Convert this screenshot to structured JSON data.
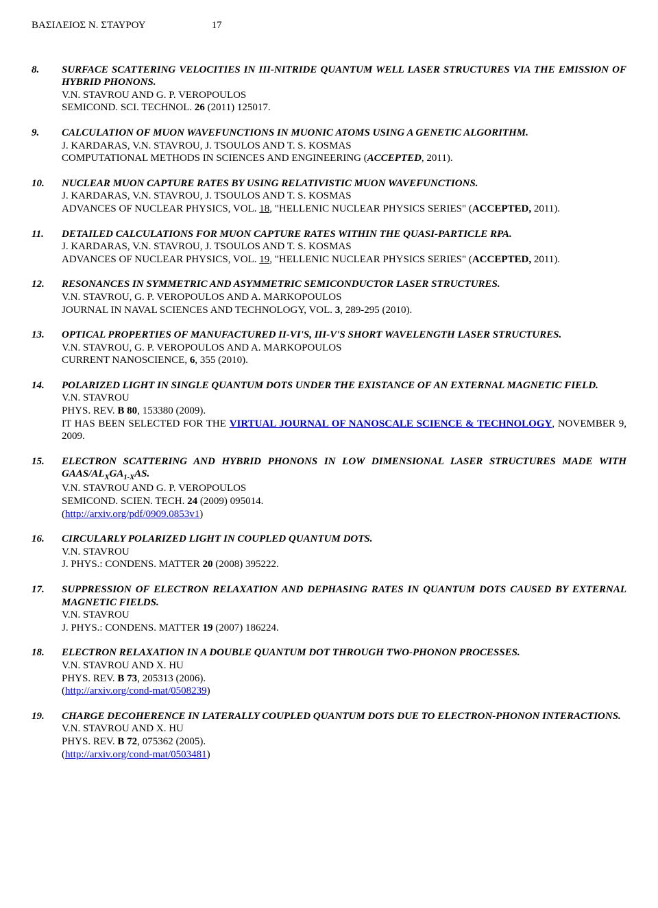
{
  "header": {
    "name": "ΒΑΣΙΛΕΙΟΣ Ν. ΣΤΑΥΡΟΥ",
    "page": "17"
  },
  "refs": [
    {
      "num": "8.",
      "title": "SURFACE SCATTERING VELOCITIES IN III-NITRIDE QUANTUM WELL LASER STRUCTURES VIA THE EMISSION OF HYBRID PHONONS.",
      "authors": "V.N. STAVROU AND G. P. VEROPOULOS",
      "pub_pre": "SEMICOND. SCI. TECHNOL. ",
      "pub_bold": "26",
      "pub_post": " (2011) 125017."
    },
    {
      "num": "9.",
      "title": "CALCULATION OF MUON WAVEFUNCTIONS IN MUONIC ATOMS USING A GENETIC ALGORITHM.",
      "authors": "J. KARDARAS, V.N. STAVROU, J. TSOULOS AND T. S. KOSMAS",
      "pub_pre": "COMPUTATIONAL METHODS IN SCIENCES AND ENGINEERING (",
      "pub_ital": "ACCEPTED",
      "pub_post2": ", 2011)."
    },
    {
      "num": "10.",
      "title": "NUCLEAR MUON CAPTURE RATES BY USING RELATIVISTIC MUON WAVEFUNCTIONS.",
      "authors": "J. KARDARAS, V.N. STAVROU, J. TSOULOS AND T. S. KOSMAS",
      "pub_pre": "ADVANCES OF NUCLEAR PHYSICS, VOL. ",
      "pub_ul": "18",
      "pub_mid": ", \"HELLENIC NUCLEAR PHYSICS SERIES\" (",
      "pub_bold2": "ACCEPTED,",
      "pub_post3": " 2011)."
    },
    {
      "num": "11.",
      "title": "DETAILED CALCULATIONS FOR MUON CAPTURE RATES WITHIN THE QUASI-PARTICLE RPA.",
      "authors": "J. KARDARAS, V.N. STAVROU, J. TSOULOS AND T. S. KOSMAS",
      "pub_pre": "ADVANCES OF NUCLEAR PHYSICS, VOL. ",
      "pub_ul": "19",
      "pub_mid": ", \"HELLENIC NUCLEAR PHYSICS SERIES\" (",
      "pub_bold2": "ACCEPTED,",
      "pub_post3": " 2011)."
    },
    {
      "num": "12.",
      "title": "RESONANCES IN SYMMETRIC AND ASYMMETRIC SEMICONDUCTOR LASER STRUCTURES.",
      "authors": "V.N. STAVROU, G. P. VEROPOULOS AND A. MARKOPOULOS",
      "pub_pre": "JOURNAL IN NAVAL SCIENCES AND TECHNOLOGY, VOL. ",
      "pub_bold": "3",
      "pub_post": ", 289-295 (2010)."
    },
    {
      "num": "13.",
      "title": "OPTICAL PROPERTIES OF MANUFACTURED II-VI'S, III-V'S SHORT WAVELENGTH LASER STRUCTURES.",
      "authors": "V.N. STAVROU, G. P. VEROPOULOS AND A. MARKOPOULOS",
      "pub_pre": "CURRENT NANOSCIENCE, ",
      "pub_bold": "6",
      "pub_post": ", 355 (2010)."
    },
    {
      "num": "14.",
      "title": "POLARIZED LIGHT IN SINGLE QUANTUM DOTS UNDER THE EXISTANCE OF AN EXTERNAL MAGNETIC FIELD.",
      "authors": "V.N. STAVROU",
      "pub_pre": "PHYS. REV. ",
      "pub_bold": "B 80",
      "pub_post": ", 153380 (2009).",
      "sel_pre": "IT HAS BEEN SELECTED FOR THE ",
      "sel_link": "VIRTUAL JOURNAL OF NANOSCALE SCIENCE & TECHNOLOGY",
      "sel_post": ", NOVEMBER 9, 2009."
    },
    {
      "num": "15.",
      "title_pre": "ELECTRON SCATTERING AND HYBRID PHONONS IN LOW DIMENSIONAL LASER STRUCTURES MADE WITH GAAS/AL",
      "title_sub1": "X",
      "title_mid": "GA",
      "title_sub2": "1-X",
      "title_post": "AS.",
      "authors": "V.N. STAVROU AND G. P. VEROPOULOS",
      "pub_pre": "SEMICOND. SCIEN. TECH. ",
      "pub_bold": "24",
      "pub_post": " (2009) 095014.",
      "paren_open": "(",
      "link": "http://arxiv.org/pdf/0909.0853v1",
      "paren_close": ")"
    },
    {
      "num": "16.",
      "title": "CIRCULARLY POLARIZED LIGHT IN COUPLED QUANTUM DOTS.",
      "authors": "V.N. STAVROU",
      "pub_pre": "J. PHYS.: CONDENS. MATTER ",
      "pub_bold": "20",
      "pub_post": " (2008) 395222."
    },
    {
      "num": "17.",
      "title": "SUPPRESSION OF ELECTRON RELAXATION AND DEPHASING RATES IN QUANTUM DOTS CAUSED BY EXTERNAL MAGNETIC FIELDS.",
      "authors": "V.N. STAVROU",
      "pub_pre": "J. PHYS.: CONDENS. MATTER ",
      "pub_bold": "19",
      "pub_post": " (2007) 186224."
    },
    {
      "num": "18.",
      "title": "ELECTRON RELAXATION IN A DOUBLE QUANTUM DOT THROUGH TWO-PHONON PROCESSES.",
      "authors": "V.N. STAVROU AND X. HU",
      "pub_pre": "PHYS. REV. ",
      "pub_bold": "B 73",
      "pub_post": ", 205313 (2006).",
      "paren_open": "(",
      "link": "http://arxiv.org/cond-mat/0508239",
      "paren_close": ")"
    },
    {
      "num": "19.",
      "title": "CHARGE DECOHERENCE IN LATERALLY COUPLED QUANTUM DOTS DUE TO ELECTRON-PHONON INTERACTIONS.",
      "authors": "V.N. STAVROU AND X. HU",
      "pub_pre": "PHYS. REV. ",
      "pub_bold": "B 72",
      "pub_post": ", 075362 (2005).",
      "paren_open": "(",
      "link": "http://arxiv.org/cond-mat/0503481",
      "paren_close": ")"
    }
  ]
}
